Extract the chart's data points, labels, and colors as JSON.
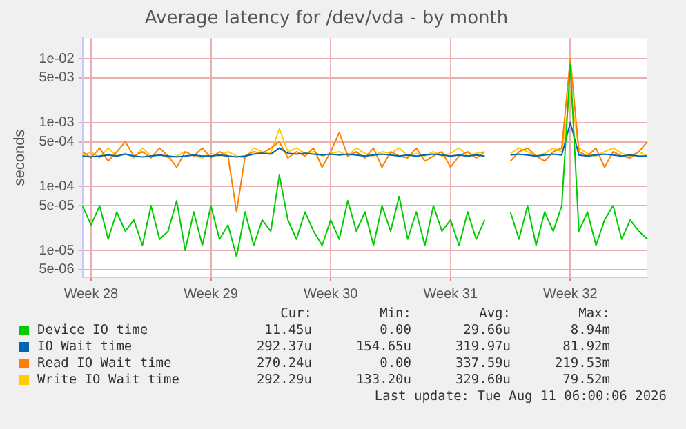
{
  "chart_data": {
    "type": "line",
    "title": "Average latency for /dev/vda - by month",
    "ylabel": "seconds",
    "log": "y",
    "grid": true,
    "legend": "bottom",
    "marker": "none",
    "line_style": "solid",
    "categories": [
      null,
      "Week 28",
      null,
      null,
      null,
      null,
      null,
      null,
      null,
      null,
      null,
      null,
      null,
      null,
      null,
      "Week 29",
      null,
      null,
      null,
      null,
      null,
      null,
      null,
      null,
      null,
      null,
      null,
      null,
      null,
      "Week 30",
      null,
      null,
      null,
      null,
      null,
      null,
      null,
      null,
      null,
      null,
      null,
      null,
      null,
      "Week 31",
      null,
      null,
      null,
      null,
      null,
      null,
      null,
      null,
      null,
      null,
      null,
      null,
      null,
      "Week 32",
      null,
      null,
      null,
      null,
      null,
      null,
      null,
      null,
      null
    ],
    "ylim": [
      3.8e-06,
      0.021
    ],
    "yticks": [
      {
        "value": 5e-06,
        "label": "5e-06"
      },
      {
        "value": 1e-05,
        "label": "1e-05"
      },
      {
        "value": 5e-05,
        "label": "5e-05"
      },
      {
        "value": 0.0001,
        "label": "1e-04"
      },
      {
        "value": 0.0005,
        "label": "5e-04"
      },
      {
        "value": 0.001,
        "label": "1e-03"
      },
      {
        "value": 0.005,
        "label": "5e-03"
      },
      {
        "value": 0.01,
        "label": "1e-02"
      }
    ],
    "series": [
      {
        "name": "Device IO time",
        "color": "#00cc00",
        "values": [
          5e-05,
          2.5e-05,
          5e-05,
          1.5e-05,
          4e-05,
          2e-05,
          3e-05,
          1.2e-05,
          5e-05,
          1.5e-05,
          2e-05,
          6e-05,
          1e-05,
          4e-05,
          1.2e-05,
          5e-05,
          1.5e-05,
          2.5e-05,
          8e-06,
          4e-05,
          1.2e-05,
          3e-05,
          2e-05,
          0.00015,
          3e-05,
          1.5e-05,
          4e-05,
          2e-05,
          1.2e-05,
          3e-05,
          1.5e-05,
          6e-05,
          2e-05,
          4e-05,
          1.2e-05,
          5e-05,
          2e-05,
          7e-05,
          1.5e-05,
          4e-05,
          1.2e-05,
          5e-05,
          2e-05,
          3e-05,
          1.2e-05,
          4e-05,
          1.5e-05,
          3e-05,
          null,
          null,
          4e-05,
          1.5e-05,
          5e-05,
          1.2e-05,
          4e-05,
          2e-05,
          5e-05,
          0.008,
          2e-05,
          4e-05,
          1.2e-05,
          3e-05,
          5e-05,
          1.5e-05,
          3e-05,
          2e-05,
          1.5e-05
        ]
      },
      {
        "name": "IO Wait time",
        "color": "#0066b3",
        "values": [
          0.0003,
          0.00029,
          0.0003,
          0.00031,
          0.0003,
          0.00032,
          0.0003,
          0.00029,
          0.0003,
          0.00031,
          0.0003,
          0.00029,
          0.0003,
          0.00031,
          0.0003,
          0.0003,
          0.00031,
          0.0003,
          0.00029,
          0.0003,
          0.00032,
          0.00033,
          0.00032,
          0.0004,
          0.00033,
          0.00032,
          0.00033,
          0.00032,
          0.00031,
          0.00032,
          0.00031,
          0.00032,
          0.00031,
          0.0003,
          0.00031,
          0.00032,
          0.00031,
          0.0003,
          0.00031,
          0.0003,
          0.00031,
          0.00032,
          0.00031,
          0.0003,
          0.00031,
          0.0003,
          0.00031,
          0.0003,
          null,
          null,
          0.00031,
          0.00032,
          0.00031,
          0.0003,
          0.00031,
          0.00032,
          0.00031,
          0.001,
          0.00031,
          0.0003,
          0.00031,
          0.00032,
          0.00031,
          0.0003,
          0.00031,
          0.0003,
          0.0003
        ]
      },
      {
        "name": "Read IO Wait time",
        "color": "#ff8000",
        "values": [
          0.00035,
          0.00028,
          0.0004,
          0.00025,
          0.00035,
          0.0005,
          0.0003,
          0.00035,
          0.00028,
          0.0004,
          0.0003,
          0.0002,
          0.00035,
          0.0003,
          0.0004,
          0.00028,
          0.00035,
          0.0003,
          4e-05,
          0.0003,
          0.00035,
          0.00033,
          0.0004,
          0.0005,
          0.00028,
          0.00035,
          0.0003,
          0.0004,
          0.0002,
          0.00035,
          0.0007,
          0.0003,
          0.00035,
          0.00028,
          0.0004,
          0.0002,
          0.00035,
          0.0003,
          0.00028,
          0.0004,
          0.00025,
          0.0003,
          0.00035,
          0.0002,
          0.0003,
          0.00035,
          0.00028,
          0.00035,
          null,
          null,
          0.00025,
          0.00035,
          0.0004,
          0.0003,
          0.00025,
          0.00035,
          0.0004,
          0.01,
          0.00035,
          0.0003,
          0.0004,
          0.0002,
          0.00035,
          0.0003,
          0.00028,
          0.00035,
          0.0005
        ]
      },
      {
        "name": "Write IO Wait time",
        "color": "#ffcc00",
        "values": [
          0.0003,
          0.00035,
          0.00028,
          0.0004,
          0.0003,
          0.00033,
          0.00028,
          0.0004,
          0.0003,
          0.00032,
          0.00028,
          0.0003,
          0.00035,
          0.0003,
          0.00028,
          0.00033,
          0.0003,
          0.00035,
          0.0003,
          0.00028,
          0.0004,
          0.00035,
          0.00033,
          0.0008,
          0.00035,
          0.0004,
          0.00033,
          0.00035,
          0.0003,
          0.00033,
          0.00035,
          0.0003,
          0.0004,
          0.00033,
          0.0003,
          0.00035,
          0.00033,
          0.0004,
          0.0003,
          0.00033,
          0.0003,
          0.00035,
          0.0003,
          0.00033,
          0.0004,
          0.0003,
          0.00033,
          0.00035,
          null,
          null,
          0.00033,
          0.0004,
          0.00035,
          0.0003,
          0.00033,
          0.0004,
          0.00035,
          0.003,
          0.0004,
          0.00033,
          0.0003,
          0.00035,
          0.0004,
          0.00033,
          0.0003,
          0.00035,
          0.0003
        ]
      }
    ],
    "annotations": [
      "Cur:",
      "Min:",
      "Avg:",
      "Max:",
      "11.45u",
      "0.00",
      "29.66u",
      "8.94m",
      "292.37u",
      "154.65u",
      "319.97u",
      "81.92m",
      "270.24u",
      "0.00",
      "337.59u",
      "219.53m",
      "292.29u",
      "133.20u",
      "329.60u",
      "79.52m",
      "Last update: Tue Aug 11 06:00:06 2026"
    ]
  }
}
